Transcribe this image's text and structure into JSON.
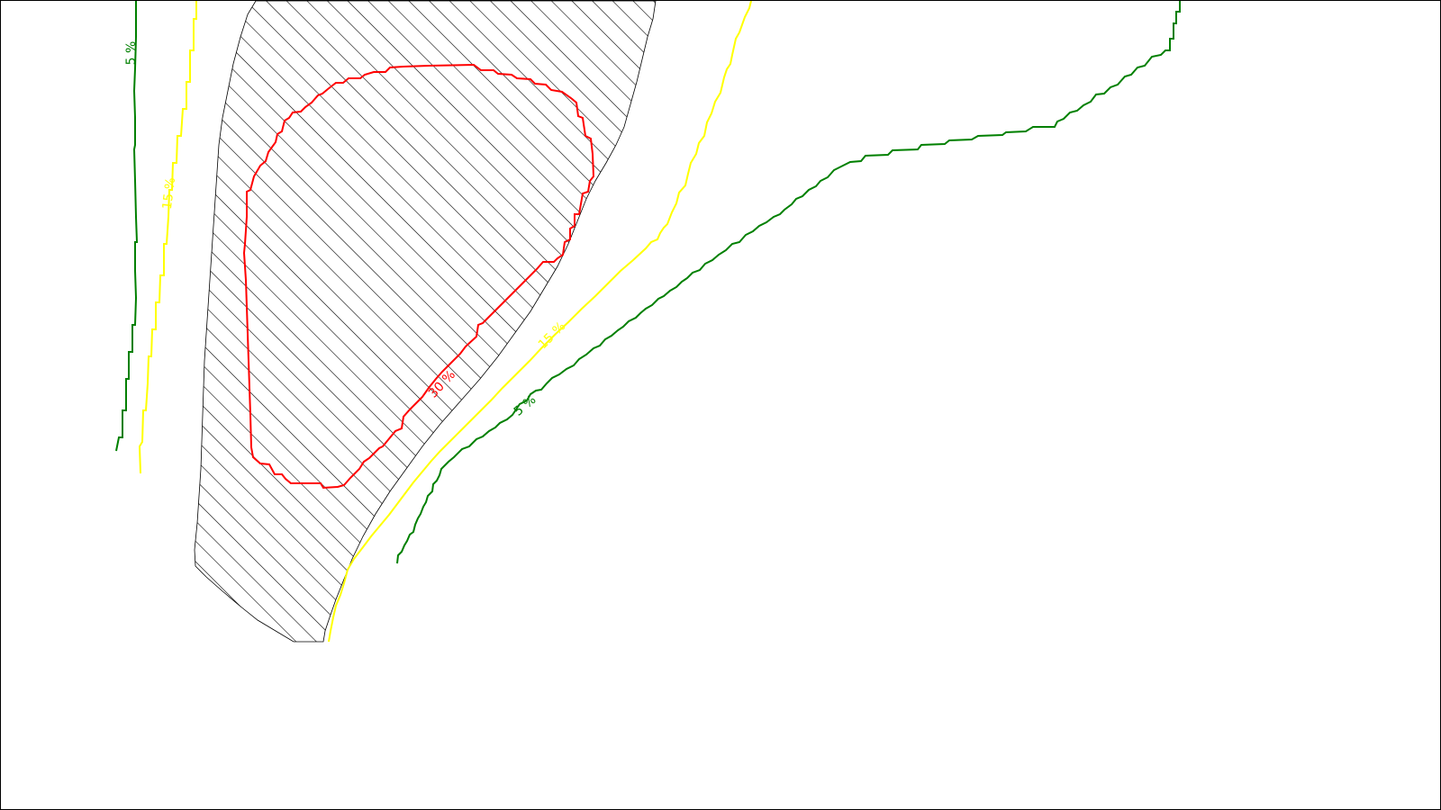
{
  "map": {
    "hatched_area": {
      "fill_pattern": "diagonal-hatch",
      "stroke_color": "#000000"
    },
    "contours": [
      {
        "id": "contour-5-west",
        "level_label": "5 %",
        "color": "#008000"
      },
      {
        "id": "contour-15-west",
        "level_label": "15 %",
        "color": "#ffff00"
      },
      {
        "id": "contour-30",
        "level_label": "30 %",
        "color": "#ff0000"
      },
      {
        "id": "contour-15-east",
        "level_label": "15 %",
        "color": "#ffff00"
      },
      {
        "id": "contour-5-east",
        "level_label": "5 %",
        "color": "#008000"
      }
    ]
  }
}
